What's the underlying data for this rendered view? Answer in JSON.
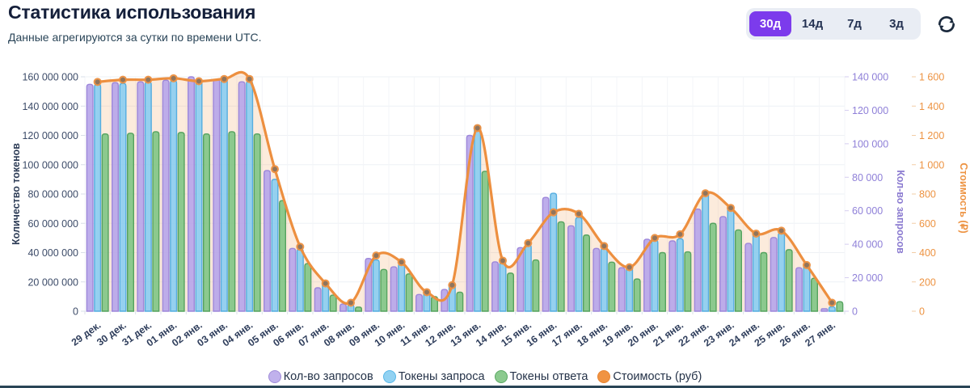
{
  "header": {
    "title": "Статистика использования",
    "subtitle": "Данные агрегируются за сутки по времени UTC.",
    "range_buttons": [
      {
        "label": "30д",
        "active": true
      },
      {
        "label": "14д",
        "active": false
      },
      {
        "label": "7д",
        "active": false
      },
      {
        "label": "3д",
        "active": false
      }
    ]
  },
  "colors": {
    "accent": "#7c3bec",
    "footer_bar": "#2a4556"
  },
  "chart_data": {
    "type": "bar",
    "note": "grouped daily bars (request/response tokens on left axis, request count on first right axis) plus smoothed cost line with area fill on second right axis",
    "categories": [
      "29 дек.",
      "30 дек.",
      "31 дек.",
      "01 янв.",
      "02 янв.",
      "03 янв.",
      "04 янв.",
      "05 янв.",
      "06 янв.",
      "07 янв.",
      "08 янв.",
      "09 янв.",
      "10 янв.",
      "11 янв.",
      "12 янв.",
      "13 янв.",
      "14 янв.",
      "15 янв.",
      "16 янв.",
      "17 янв.",
      "18 янв.",
      "19 янв.",
      "20 янв.",
      "21 янв.",
      "22 янв.",
      "23 янв.",
      "24 янв.",
      "25 янв.",
      "26 янв.",
      "27 янв."
    ],
    "series": [
      {
        "name": "Кол-во запросов",
        "kind": "bar",
        "axis": "requests",
        "color": "#b7a6e9",
        "border": "#9d87da",
        "values": [
          135500,
          136500,
          137000,
          138000,
          140000,
          138500,
          137000,
          84000,
          37500,
          14000,
          4300,
          31500,
          26500,
          10000,
          13000,
          105000,
          29500,
          38000,
          68000,
          51000,
          37500,
          26000,
          43000,
          42000,
          61000,
          56500,
          40500,
          44000,
          26000,
          1500
        ]
      },
      {
        "name": "Токены запроса",
        "kind": "bar",
        "axis": "tokens",
        "color": "#8ccdf0",
        "border": "#55ade0",
        "values": [
          155000000,
          155500000,
          156500000,
          157500000,
          158000000,
          158500000,
          157000000,
          90000000,
          42500000,
          19500000,
          4600000,
          35000000,
          32500000,
          13500000,
          18500000,
          127000000,
          33500000,
          45500000,
          80500000,
          64000000,
          43000000,
          30000000,
          48500000,
          49500000,
          82000000,
          71000000,
          53500000,
          53500000,
          32000000,
          3000000
        ]
      },
      {
        "name": "Токены ответа",
        "kind": "bar",
        "axis": "tokens",
        "color": "#82c687",
        "border": "#55a35f",
        "values": [
          121000000,
          121500000,
          122500000,
          122000000,
          121000000,
          122500000,
          121000000,
          75500000,
          32500000,
          11000000,
          2800000,
          28500000,
          25500000,
          10000000,
          13000000,
          95500000,
          26000000,
          35000000,
          61000000,
          52000000,
          33500000,
          22000000,
          40000000,
          40500000,
          60000000,
          55500000,
          40000000,
          42000000,
          22500000,
          6500000
        ]
      },
      {
        "name": "Стоимость (руб)",
        "kind": "line",
        "axis": "cost",
        "color": "#ed8f3f",
        "area_fill": "rgba(238,143,63,0.18)",
        "values": [
          1565,
          1580,
          1580,
          1590,
          1570,
          1585,
          1585,
          970,
          440,
          190,
          58,
          380,
          335,
          130,
          178,
          1250,
          345,
          465,
          675,
          665,
          445,
          300,
          500,
          525,
          805,
          705,
          530,
          550,
          315,
          58
        ]
      }
    ],
    "axes": {
      "tokens": {
        "label": "Количество токенов",
        "min": 0,
        "max": 160000000,
        "color": "#3d4c69",
        "title_color": "#2c3b55",
        "tick_labels": [
          "0",
          "20 000 000",
          "40 000 000",
          "60 000 000",
          "80 000 000",
          "100 000 000",
          "120 000 000",
          "140 000 000",
          "160 000 000"
        ]
      },
      "requests": {
        "label": "Кол-во запросов",
        "min": 0,
        "max": 140000,
        "color": "#8f80d8",
        "title_color": "#8a7ad0",
        "tick_labels": [
          "0",
          "20 000",
          "40 000",
          "60 000",
          "80 000",
          "100 000",
          "120 000",
          "140 000"
        ]
      },
      "cost": {
        "label": "Стоимость (₽)",
        "min": 0,
        "max": 1600,
        "color": "#ed9342",
        "title_color": "#ed9342",
        "tick_labels": [
          "0",
          "200",
          "400",
          "600",
          "800",
          "1 000",
          "1 200",
          "1 400",
          "1 600"
        ]
      }
    },
    "legend": [
      {
        "label": "Кол-во запросов",
        "color": "#c0b1ec",
        "border": "#a18cd9"
      },
      {
        "label": "Токены запроса",
        "color": "#92d2f2",
        "border": "#58b7e8"
      },
      {
        "label": "Токены ответа",
        "color": "#8bca8e",
        "border": "#5aa863"
      },
      {
        "label": "Стоимость (руб)",
        "color": "#f09342",
        "border": "#e88430"
      }
    ],
    "grid": true,
    "legend_position": "bottom",
    "x_tick_color": "#2f3e5c"
  }
}
